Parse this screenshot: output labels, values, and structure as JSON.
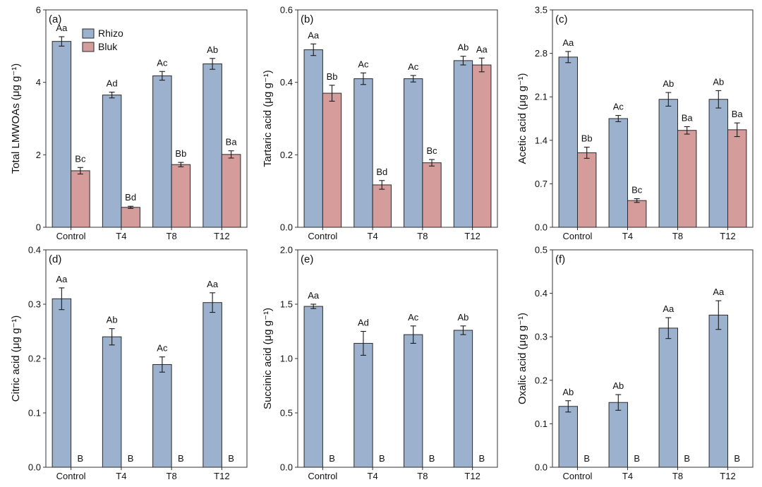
{
  "legend": {
    "entries": [
      {
        "name": "Rhizo",
        "color": "#9bb1cd"
      },
      {
        "name": "Bluk",
        "color": "#d59c9c"
      }
    ]
  },
  "chart_data": [
    {
      "type": "bar",
      "panel": "(a)",
      "ylabel": "Total LMWOAs (μg g⁻¹)",
      "ylim": [
        0,
        6
      ],
      "yticks": [
        0,
        2,
        4,
        6
      ],
      "tick_decimals": 0,
      "categories": [
        "Control",
        "T4",
        "T8",
        "T12"
      ],
      "series": [
        {
          "name": "Rhizo",
          "values": [
            5.13,
            3.65,
            4.18,
            4.51
          ],
          "errors": [
            0.13,
            0.08,
            0.12,
            0.15
          ],
          "letters": [
            "Aa",
            "Ad",
            "Ac",
            "Ab"
          ]
        },
        {
          "name": "Bluk",
          "values": [
            1.56,
            0.55,
            1.73,
            2.01
          ],
          "errors": [
            0.09,
            0.03,
            0.06,
            0.1
          ],
          "letters": [
            "Bc",
            "Bd",
            "Bb",
            "Ba"
          ]
        }
      ]
    },
    {
      "type": "bar",
      "panel": "(b)",
      "ylabel": "Tartaric acid (μg g⁻¹)",
      "ylim": [
        0,
        0.6
      ],
      "yticks": [
        0,
        0.2,
        0.4,
        0.6
      ],
      "tick_decimals": 1,
      "categories": [
        "Control",
        "T4",
        "T8",
        "T12"
      ],
      "series": [
        {
          "name": "Rhizo",
          "values": [
            0.49,
            0.41,
            0.41,
            0.46
          ],
          "errors": [
            0.016,
            0.016,
            0.009,
            0.012
          ],
          "letters": [
            "Aa",
            "Ac",
            "Ac",
            "Ab"
          ]
        },
        {
          "name": "Bluk",
          "values": [
            0.37,
            0.117,
            0.178,
            0.448
          ],
          "errors": [
            0.022,
            0.012,
            0.009,
            0.019
          ],
          "letters": [
            "Bb",
            "Bd",
            "Bc",
            "Aa"
          ]
        }
      ]
    },
    {
      "type": "bar",
      "panel": "(c)",
      "ylabel": "Acetic acid (μg g⁻¹)",
      "ylim": [
        0,
        3.5
      ],
      "yticks": [
        0,
        0.7,
        1.4,
        2.1,
        2.8,
        3.5
      ],
      "tick_decimals": 1,
      "categories": [
        "Control",
        "T4",
        "T8",
        "T12"
      ],
      "series": [
        {
          "name": "Rhizo",
          "values": [
            2.74,
            1.75,
            2.06,
            2.06
          ],
          "errors": [
            0.09,
            0.05,
            0.11,
            0.14
          ],
          "letters": [
            "Aa",
            "Ac",
            "Ab",
            "Ab"
          ]
        },
        {
          "name": "Bluk",
          "values": [
            1.2,
            0.43,
            1.56,
            1.57
          ],
          "errors": [
            0.09,
            0.03,
            0.06,
            0.11
          ],
          "letters": [
            "Bb",
            "Bc",
            "Ba",
            "Ba"
          ]
        }
      ]
    },
    {
      "type": "bar",
      "panel": "(d)",
      "ylabel": "Citric acid (μg g⁻¹)",
      "ylim": [
        0,
        0.4
      ],
      "yticks": [
        0,
        0.1,
        0.2,
        0.3,
        0.4
      ],
      "tick_decimals": 1,
      "categories": [
        "Control",
        "T4",
        "T8",
        "T12"
      ],
      "series": [
        {
          "name": "Rhizo",
          "values": [
            0.31,
            0.24,
            0.189,
            0.303
          ],
          "errors": [
            0.02,
            0.015,
            0.014,
            0.018
          ],
          "letters": [
            "Aa",
            "Ab",
            "Ac",
            "Aa"
          ]
        },
        {
          "name": "Bluk",
          "values": [
            0,
            0,
            0,
            0
          ],
          "errors": [
            0,
            0,
            0,
            0
          ],
          "letters": [
            "B",
            "B",
            "B",
            "B"
          ]
        }
      ]
    },
    {
      "type": "bar",
      "panel": "(e)",
      "ylabel": "Succinic acid (μg g⁻¹)",
      "ylim": [
        0,
        2.0
      ],
      "yticks": [
        0,
        0.5,
        1.0,
        1.5,
        2.0
      ],
      "tick_decimals": 1,
      "categories": [
        "Control",
        "T4",
        "T8",
        "T12"
      ],
      "series": [
        {
          "name": "Rhizo",
          "values": [
            1.48,
            1.14,
            1.22,
            1.26
          ],
          "errors": [
            0.02,
            0.11,
            0.08,
            0.04
          ],
          "letters": [
            "Aa",
            "Ad",
            "Ac",
            "Ab"
          ]
        },
        {
          "name": "Bluk",
          "values": [
            0,
            0,
            0,
            0
          ],
          "errors": [
            0,
            0,
            0,
            0
          ],
          "letters": [
            "B",
            "B",
            "B",
            "B"
          ]
        }
      ]
    },
    {
      "type": "bar",
      "panel": "(f)",
      "ylabel": "Oxalic acid (μg g⁻¹)",
      "ylim": [
        0,
        0.5
      ],
      "yticks": [
        0,
        0.1,
        0.2,
        0.3,
        0.4,
        0.5
      ],
      "tick_decimals": 1,
      "categories": [
        "Control",
        "T4",
        "T8",
        "T12"
      ],
      "series": [
        {
          "name": "Rhizo",
          "values": [
            0.14,
            0.149,
            0.32,
            0.35
          ],
          "errors": [
            0.013,
            0.018,
            0.024,
            0.033
          ],
          "letters": [
            "Ab",
            "Ab",
            "Aa",
            "Aa"
          ]
        },
        {
          "name": "Bluk",
          "values": [
            0,
            0,
            0,
            0
          ],
          "errors": [
            0,
            0,
            0,
            0
          ],
          "letters": [
            "B",
            "B",
            "B",
            "B"
          ]
        }
      ]
    }
  ]
}
